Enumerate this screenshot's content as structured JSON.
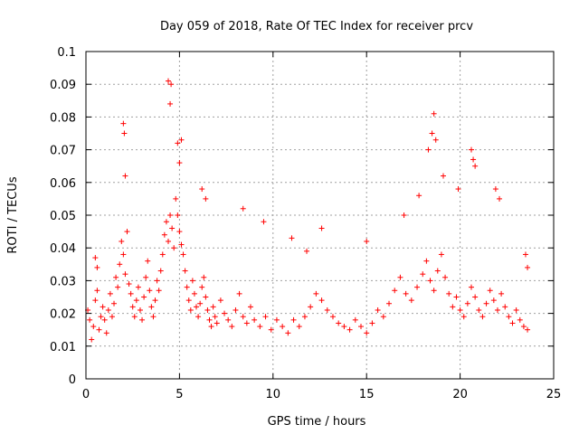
{
  "chart_data": {
    "type": "scatter",
    "title": "Day 059 of 2018, Rate Of TEC Index for receiver prcv",
    "xlabel": "GPS time / hours",
    "ylabel": "ROTI / TECUs",
    "xlim": [
      0,
      25
    ],
    "ylim": [
      0,
      0.1
    ],
    "xticks": [
      "0",
      "5",
      "10",
      "15",
      "20",
      "25"
    ],
    "yticks": [
      "0",
      "0.01",
      "0.02",
      "0.03",
      "0.04",
      "0.05",
      "0.06",
      "0.07",
      "0.08",
      "0.09",
      "0.1"
    ],
    "grid": true,
    "marker": "plus",
    "series": [
      {
        "name": "ROTI",
        "color": "#ff0000",
        "x": [
          0.1,
          0.2,
          0.3,
          0.4,
          0.5,
          0.6,
          0.7,
          0.8,
          0.9,
          1.0,
          1.1,
          1.2,
          1.3,
          1.4,
          1.5,
          1.6,
          1.7,
          1.8,
          1.9,
          2.0,
          2.1,
          2.2,
          2.3,
          2.4,
          2.5,
          2.6,
          2.7,
          2.8,
          2.9,
          3.0,
          3.1,
          3.2,
          3.3,
          3.4,
          3.5,
          3.6,
          3.7,
          3.8,
          3.9,
          4.0,
          4.1,
          4.2,
          4.3,
          4.4,
          4.5,
          4.6,
          4.7,
          4.8,
          4.9,
          5.0,
          5.1,
          5.2,
          5.3,
          5.4,
          5.5,
          5.6,
          5.7,
          5.8,
          5.9,
          6.0,
          6.1,
          6.2,
          6.3,
          6.4,
          6.5,
          6.6,
          6.7,
          6.8,
          6.9,
          7.0,
          7.2,
          7.4,
          7.6,
          7.8,
          8.0,
          8.2,
          8.4,
          8.6,
          8.8,
          9.0,
          9.3,
          9.6,
          9.9,
          10.2,
          10.5,
          10.8,
          11.1,
          11.4,
          11.7,
          12.0,
          12.3,
          12.6,
          12.9,
          13.2,
          13.5,
          13.8,
          14.1,
          14.4,
          14.7,
          15.0,
          15.3,
          15.6,
          15.9,
          16.2,
          16.5,
          16.8,
          17.1,
          17.4,
          17.7,
          18.0,
          18.2,
          18.4,
          18.6,
          18.8,
          19.0,
          19.2,
          19.4,
          19.6,
          19.8,
          20.0,
          20.2,
          20.4,
          20.6,
          20.8,
          21.0,
          21.2,
          21.4,
          21.6,
          21.8,
          22.0,
          22.2,
          22.4,
          22.6,
          22.8,
          23.0,
          23.2,
          23.4,
          23.6,
          0.5,
          0.6,
          2.0,
          2.05,
          2.1,
          4.4,
          4.5,
          4.55,
          4.9,
          5.0,
          5.1,
          6.2,
          6.4,
          8.4,
          9.5,
          11.0,
          11.8,
          12.6,
          15.0,
          17.0,
          17.8,
          18.3,
          18.5,
          18.6,
          18.7,
          19.1,
          19.9,
          20.6,
          20.7,
          20.8,
          21.9,
          22.1,
          23.5,
          23.6
        ],
        "y": [
          0.021,
          0.018,
          0.012,
          0.016,
          0.024,
          0.027,
          0.015,
          0.019,
          0.022,
          0.018,
          0.014,
          0.021,
          0.026,
          0.019,
          0.023,
          0.031,
          0.028,
          0.035,
          0.042,
          0.038,
          0.032,
          0.045,
          0.029,
          0.026,
          0.022,
          0.019,
          0.024,
          0.028,
          0.021,
          0.018,
          0.025,
          0.031,
          0.036,
          0.027,
          0.022,
          0.019,
          0.024,
          0.03,
          0.027,
          0.033,
          0.038,
          0.044,
          0.048,
          0.042,
          0.05,
          0.046,
          0.04,
          0.055,
          0.05,
          0.045,
          0.041,
          0.038,
          0.033,
          0.028,
          0.024,
          0.021,
          0.03,
          0.026,
          0.022,
          0.019,
          0.023,
          0.028,
          0.031,
          0.025,
          0.021,
          0.018,
          0.016,
          0.022,
          0.019,
          0.017,
          0.024,
          0.02,
          0.018,
          0.016,
          0.021,
          0.026,
          0.019,
          0.017,
          0.022,
          0.018,
          0.016,
          0.019,
          0.015,
          0.018,
          0.016,
          0.014,
          0.018,
          0.016,
          0.019,
          0.022,
          0.026,
          0.024,
          0.021,
          0.019,
          0.017,
          0.016,
          0.015,
          0.018,
          0.016,
          0.014,
          0.017,
          0.021,
          0.019,
          0.023,
          0.027,
          0.031,
          0.026,
          0.024,
          0.028,
          0.032,
          0.036,
          0.03,
          0.027,
          0.033,
          0.038,
          0.031,
          0.026,
          0.022,
          0.025,
          0.021,
          0.019,
          0.023,
          0.028,
          0.025,
          0.021,
          0.019,
          0.023,
          0.027,
          0.024,
          0.021,
          0.026,
          0.022,
          0.019,
          0.017,
          0.021,
          0.018,
          0.016,
          0.015,
          0.037,
          0.034,
          0.078,
          0.075,
          0.062,
          0.091,
          0.084,
          0.09,
          0.072,
          0.066,
          0.073,
          0.058,
          0.055,
          0.052,
          0.048,
          0.043,
          0.039,
          0.046,
          0.042,
          0.05,
          0.056,
          0.07,
          0.075,
          0.081,
          0.073,
          0.062,
          0.058,
          0.07,
          0.067,
          0.065,
          0.058,
          0.055,
          0.038,
          0.034
        ]
      }
    ]
  }
}
